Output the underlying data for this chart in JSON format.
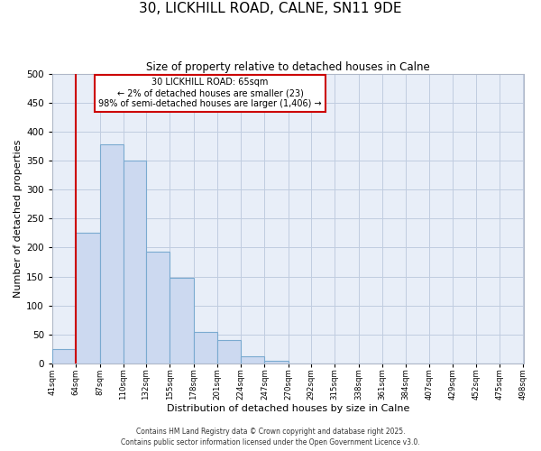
{
  "title": "30, LICKHILL ROAD, CALNE, SN11 9DE",
  "subtitle": "Size of property relative to detached houses in Calne",
  "xlabel": "Distribution of detached houses by size in Calne",
  "ylabel": "Number of detached properties",
  "bar_color": "#ccd9f0",
  "bar_edge_color": "#7aaad0",
  "background_color": "#ffffff",
  "plot_bg_color": "#e8eef8",
  "grid_color": "#c0cce0",
  "annotation_box_edge_color": "#cc0000",
  "vline_color": "#cc0000",
  "vline_x": 64,
  "annotation_text_line1": "30 LICKHILL ROAD: 65sqm",
  "annotation_text_line2": "← 2% of detached houses are smaller (23)",
  "annotation_text_line3": "98% of semi-detached houses are larger (1,406) →",
  "bins": [
    41,
    64,
    87,
    110,
    132,
    155,
    178,
    201,
    224,
    247,
    270,
    292,
    315,
    338,
    361,
    384,
    407,
    429,
    452,
    475,
    498
  ],
  "bar_heights": [
    25,
    225,
    378,
    350,
    193,
    147,
    55,
    40,
    12,
    5,
    0,
    0,
    0,
    0,
    0,
    0,
    0,
    0,
    0,
    0
  ],
  "ylim": [
    0,
    500
  ],
  "yticks": [
    0,
    50,
    100,
    150,
    200,
    250,
    300,
    350,
    400,
    450,
    500
  ],
  "xtick_labels": [
    "41sqm",
    "64sqm",
    "87sqm",
    "110sqm",
    "132sqm",
    "155sqm",
    "178sqm",
    "201sqm",
    "224sqm",
    "247sqm",
    "270sqm",
    "292sqm",
    "315sqm",
    "338sqm",
    "361sqm",
    "384sqm",
    "407sqm",
    "429sqm",
    "452sqm",
    "475sqm",
    "498sqm"
  ],
  "footer_line1": "Contains HM Land Registry data © Crown copyright and database right 2025.",
  "footer_line2": "Contains public sector information licensed under the Open Government Licence v3.0."
}
